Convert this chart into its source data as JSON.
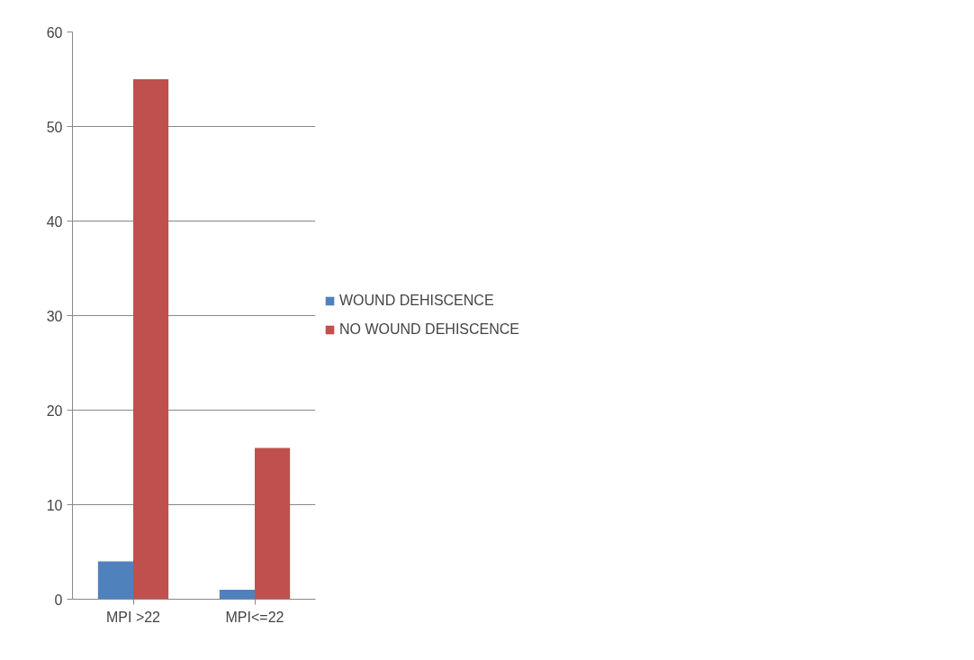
{
  "chart_data": {
    "type": "bar",
    "categories": [
      "MPI >22",
      "MPI<=22"
    ],
    "series": [
      {
        "name": "WOUND DEHISCENCE",
        "color": "#4f81bd",
        "values": [
          4,
          1
        ]
      },
      {
        "name": "NO WOUND DEHISCENCE",
        "color": "#c0504d",
        "values": [
          55,
          16
        ]
      }
    ],
    "ylim": [
      0,
      60
    ],
    "yticks": [
      0,
      10,
      20,
      30,
      40,
      50,
      60
    ],
    "grid": "y",
    "legend": "right"
  }
}
